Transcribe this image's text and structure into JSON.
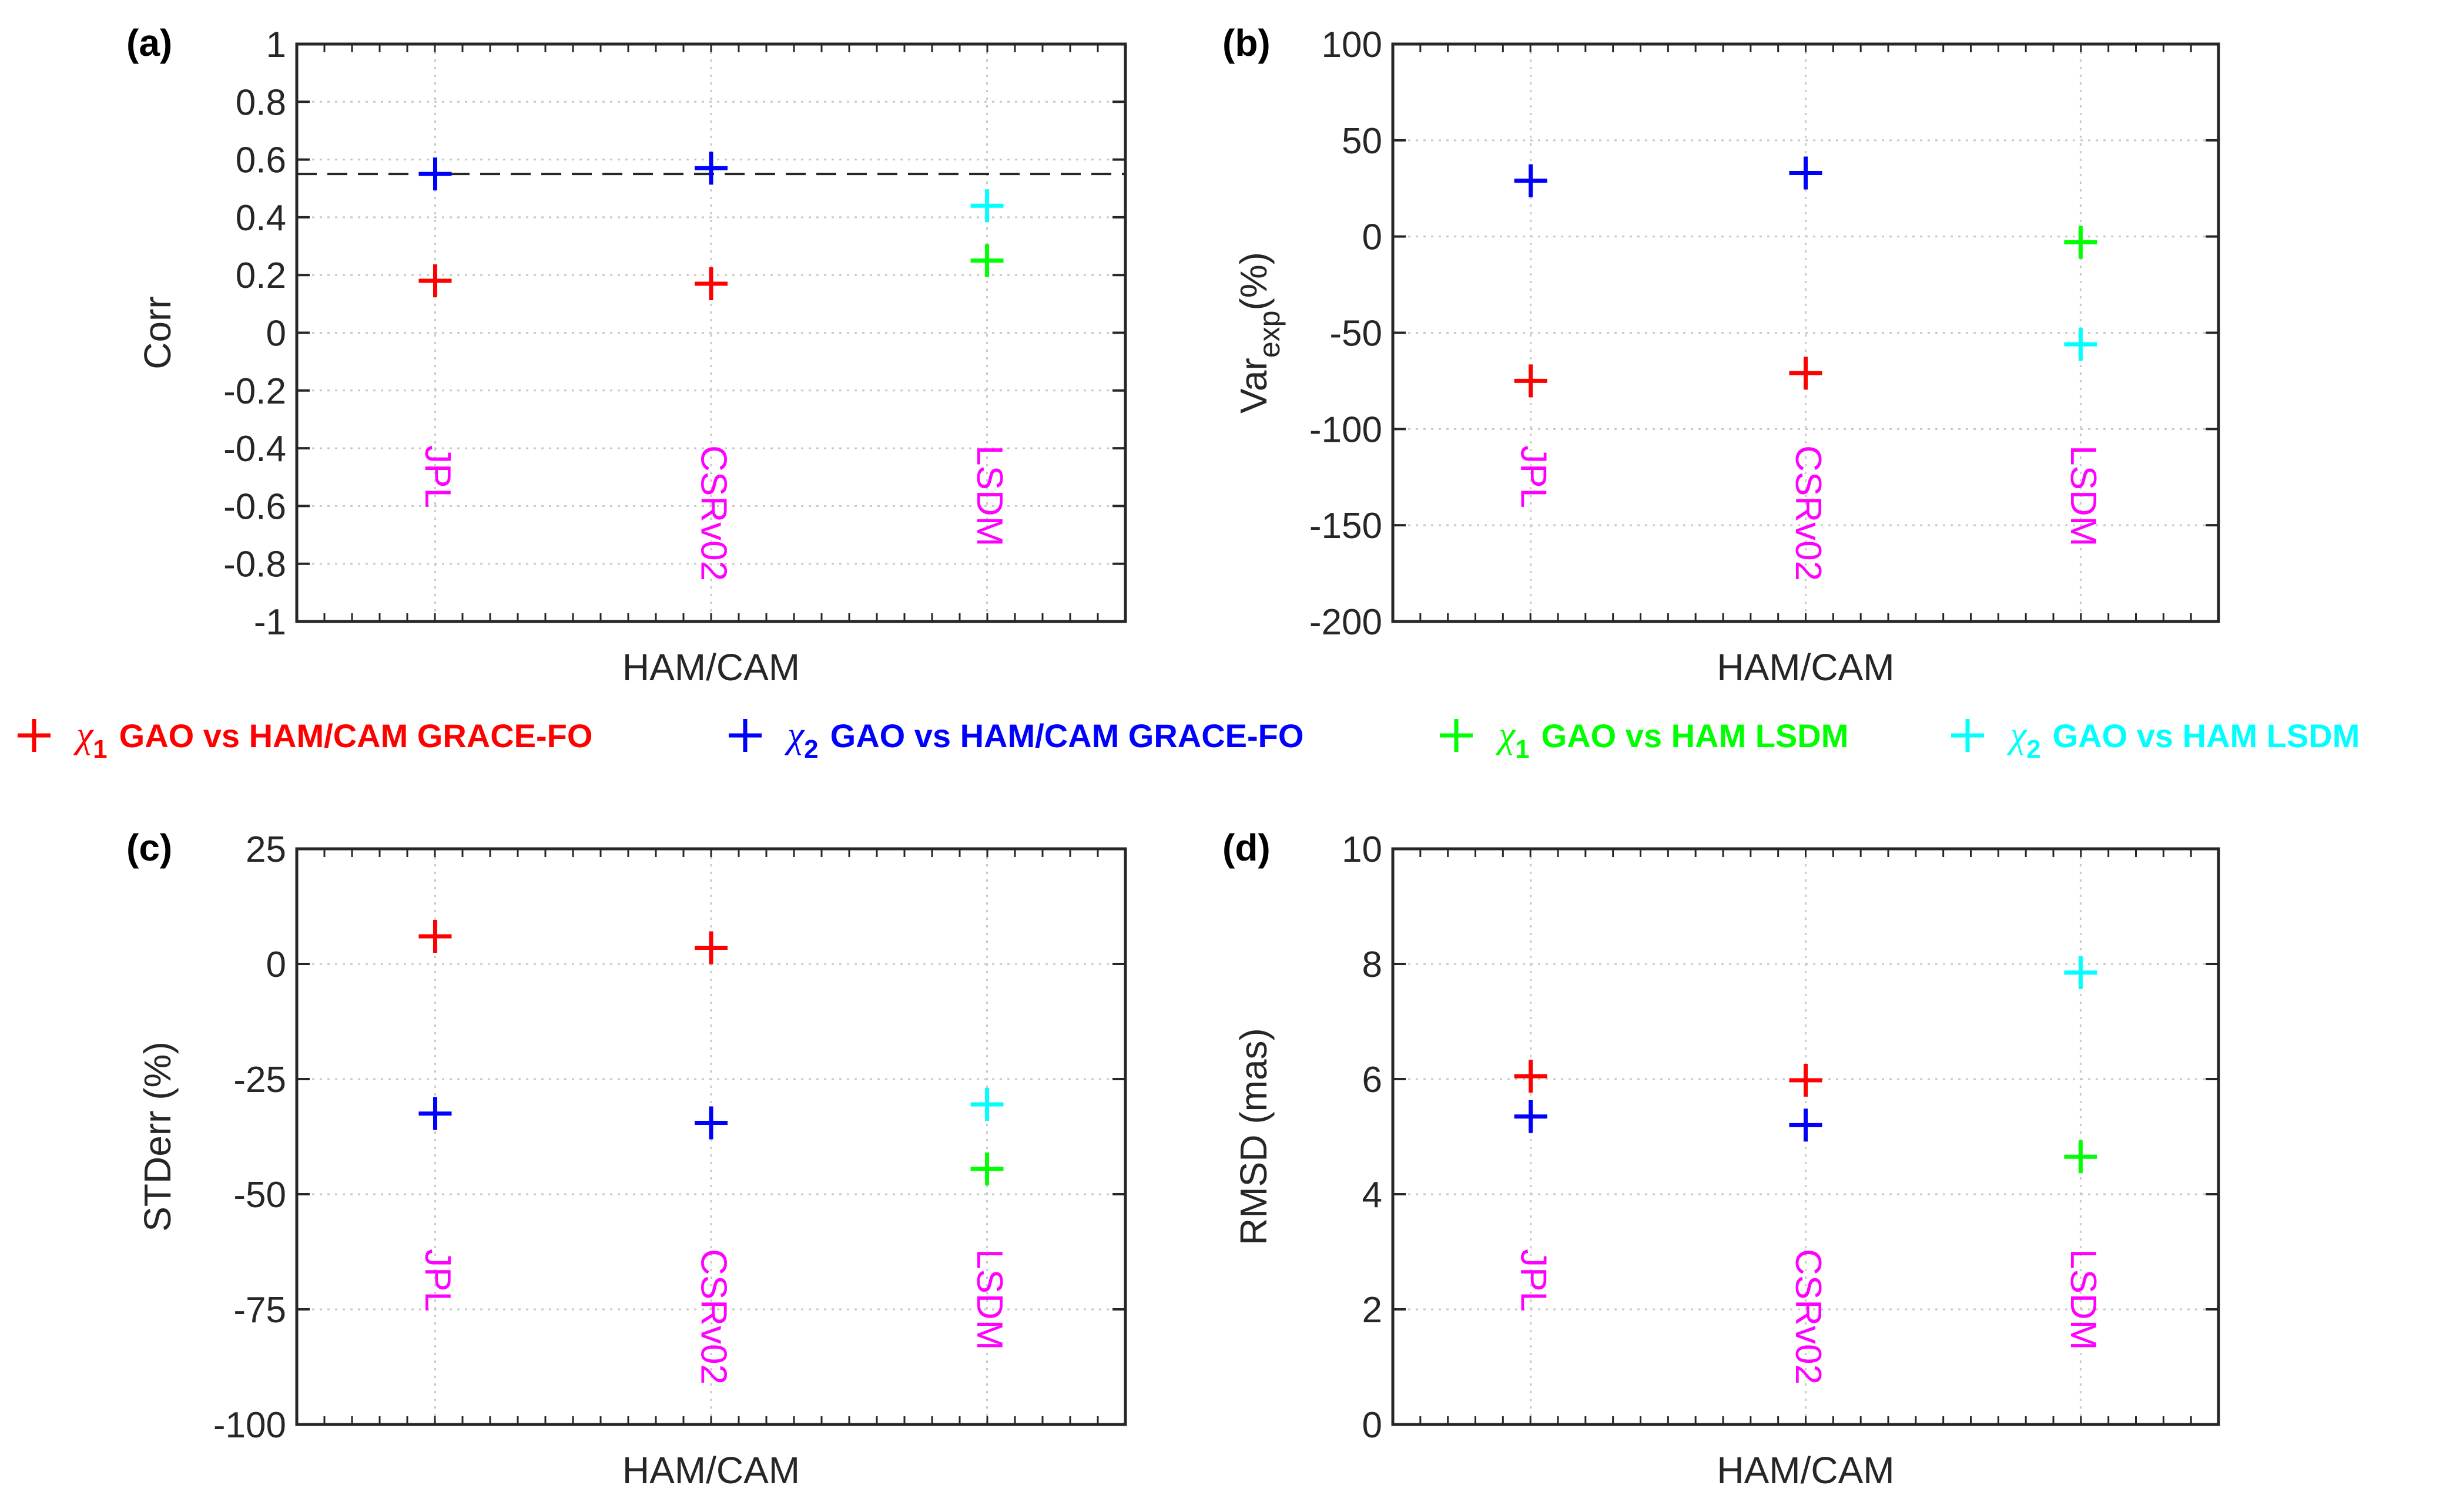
{
  "colors": {
    "chi1_grace": "#ff0000",
    "chi2_grace": "#0000ff",
    "chi1_lsdm": "#00ff00",
    "chi2_lsdm": "#00ffff",
    "category_labels": "#ff00ff"
  },
  "legend": {
    "items": [
      {
        "symbol": "+",
        "chi": "χ",
        "sub": "1",
        "text": "GAO vs HAM/CAM GRACE-FO",
        "color": "#ff0000"
      },
      {
        "symbol": "+",
        "chi": "χ",
        "sub": "2",
        "text": "GAO vs HAM/CAM GRACE-FO",
        "color": "#0000ff"
      },
      {
        "symbol": "+",
        "chi": "χ",
        "sub": "1",
        "text": "GAO vs HAM LSDM",
        "color": "#00ff00"
      },
      {
        "symbol": "+",
        "chi": "χ",
        "sub": "2",
        "text": "GAO vs HAM LSDM",
        "color": "#00ffff"
      }
    ]
  },
  "chart_data": [
    {
      "type": "scatter",
      "panel_label": "(a)",
      "xlabel": "HAM/CAM",
      "ylabel": "Corr",
      "ylim": [
        -1,
        1
      ],
      "yticks": [
        -1,
        -0.8,
        -0.6,
        -0.4,
        -0.2,
        0,
        0.2,
        0.4,
        0.6,
        0.8,
        1
      ],
      "ytick_labels": [
        "-1",
        "-0.8",
        "-0.6",
        "-0.4",
        "-0.2",
        "0",
        "0.2",
        "0.4",
        "0.6",
        "0.8",
        "1"
      ],
      "categories": [
        "JPL",
        "CSRv02",
        "LSDM"
      ],
      "grid": true,
      "reference_line": 0.55,
      "series": [
        {
          "key": "chi1_grace",
          "values": [
            0.18,
            0.17,
            null
          ]
        },
        {
          "key": "chi2_grace",
          "values": [
            0.55,
            0.57,
            null
          ]
        },
        {
          "key": "chi1_lsdm",
          "values": [
            null,
            null,
            0.25
          ]
        },
        {
          "key": "chi2_lsdm",
          "values": [
            null,
            null,
            0.44
          ]
        }
      ]
    },
    {
      "type": "scatter",
      "panel_label": "(b)",
      "xlabel": "HAM/CAM",
      "ylabel": "Var",
      "ylabel_sub": "exp",
      "ylabel_suffix": "(%)",
      "ylim": [
        -200,
        100
      ],
      "yticks": [
        -200,
        -150,
        -100,
        -50,
        0,
        50,
        100
      ],
      "ytick_labels": [
        "-200",
        "-150",
        "-100",
        "-50",
        "0",
        "50",
        "100"
      ],
      "categories": [
        "JPL",
        "CSRv02",
        "LSDM"
      ],
      "grid": true,
      "series": [
        {
          "key": "chi1_grace",
          "values": [
            -75,
            -71,
            null
          ]
        },
        {
          "key": "chi2_grace",
          "values": [
            29,
            33,
            null
          ]
        },
        {
          "key": "chi1_lsdm",
          "values": [
            null,
            null,
            -3
          ]
        },
        {
          "key": "chi2_lsdm",
          "values": [
            null,
            null,
            -56
          ]
        }
      ]
    },
    {
      "type": "scatter",
      "panel_label": "(c)",
      "xlabel": "HAM/CAM",
      "ylabel": "STDerr (%)",
      "ylim": [
        -100,
        25
      ],
      "yticks": [
        -100,
        -75,
        -50,
        -25,
        0,
        25
      ],
      "ytick_labels": [
        "-100",
        "-75",
        "-50",
        "-25",
        "0",
        "25"
      ],
      "categories": [
        "JPL",
        "CSRv02",
        "LSDM"
      ],
      "grid": true,
      "series": [
        {
          "key": "chi1_grace",
          "values": [
            6,
            3.5,
            null
          ]
        },
        {
          "key": "chi2_grace",
          "values": [
            -32.5,
            -34.5,
            null
          ]
        },
        {
          "key": "chi1_lsdm",
          "values": [
            null,
            null,
            -44.5
          ]
        },
        {
          "key": "chi2_lsdm",
          "values": [
            null,
            null,
            -30.5
          ]
        }
      ]
    },
    {
      "type": "scatter",
      "panel_label": "(d)",
      "xlabel": "HAM/CAM",
      "ylabel": "RMSD (mas)",
      "ylim": [
        0,
        10
      ],
      "yticks": [
        0,
        2,
        4,
        6,
        8,
        10
      ],
      "ytick_labels": [
        "0",
        "2",
        "4",
        "6",
        "8",
        "10"
      ],
      "categories": [
        "JPL",
        "CSRv02",
        "LSDM"
      ],
      "grid": true,
      "series": [
        {
          "key": "chi1_grace",
          "values": [
            6.05,
            5.98,
            null
          ]
        },
        {
          "key": "chi2_grace",
          "values": [
            5.35,
            5.2,
            null
          ]
        },
        {
          "key": "chi1_lsdm",
          "values": [
            null,
            null,
            4.65
          ]
        },
        {
          "key": "chi2_lsdm",
          "values": [
            null,
            null,
            7.85
          ]
        }
      ]
    }
  ]
}
